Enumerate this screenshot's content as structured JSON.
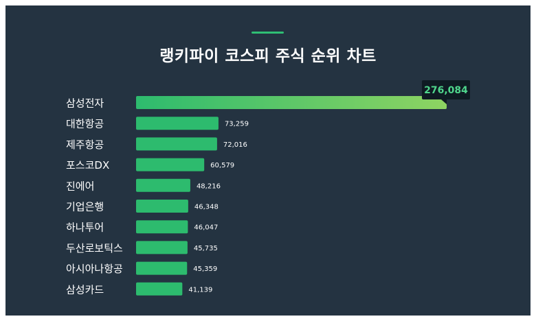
{
  "colors": {
    "background": "#243341",
    "accent": "#2fbf74",
    "bar": "#2dbb6e",
    "top_bar_start": "#2dbb6e",
    "top_bar_end": "#8ed462",
    "top_label_bg": "#0f1b23",
    "top_label_text": "#4fd68c",
    "text": "#ffffff"
  },
  "chart_data": {
    "type": "bar",
    "orientation": "horizontal",
    "title": "랭키파이 코스피 주식 순위 차트",
    "categories": [
      "삼성전자",
      "대한항공",
      "제주항공",
      "포스코DX",
      "진에어",
      "기업은행",
      "하나투어",
      "두산로보틱스",
      "아시아나항공",
      "삼성카드"
    ],
    "values": [
      276084,
      73259,
      72016,
      60579,
      48216,
      46348,
      46047,
      45735,
      45359,
      41139
    ],
    "value_labels": [
      "276,084",
      "73,259",
      "72,016",
      "60,579",
      "48,216",
      "46,348",
      "46,047",
      "45,735",
      "45,359",
      "41,139"
    ],
    "xlim": [
      0,
      276084
    ],
    "grid": false,
    "legend": "none"
  }
}
